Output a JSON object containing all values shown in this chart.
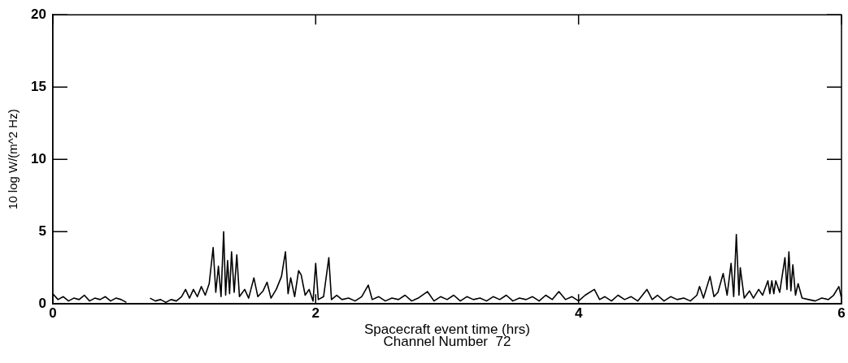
{
  "chart_data": {
    "type": "line",
    "xlabel": "Spacecraft event time (hrs)",
    "ylabel": "10 log W/(m^2 Hz)",
    "annotations": [
      "Channel Number  72"
    ],
    "xlim": [
      0,
      6
    ],
    "xticks": [
      0,
      2,
      4,
      6
    ],
    "ylim": [
      0,
      20
    ],
    "yticks": [
      0,
      5,
      10,
      15,
      20
    ],
    "grid": false,
    "legend": false,
    "marker": "none",
    "line_style": "solid",
    "series": [
      {
        "color": "#000000",
        "x": [
          0,
          0.04,
          0.08,
          0.12,
          0.16,
          0.2,
          0.24,
          0.28,
          0.32,
          0.36,
          0.4,
          0.44,
          0.48,
          0.52,
          0.56,
          0.62,
          0.74,
          0.78,
          0.82,
          0.86,
          0.9,
          0.94,
          0.98,
          1.01,
          1.04,
          1.07,
          1.1,
          1.13,
          1.16,
          1.19,
          1.22,
          1.24,
          1.26,
          1.28,
          1.3,
          1.315,
          1.33,
          1.345,
          1.36,
          1.38,
          1.4,
          1.42,
          1.46,
          1.49,
          1.53,
          1.56,
          1.6,
          1.63,
          1.66,
          1.7,
          1.74,
          1.77,
          1.79,
          1.81,
          1.84,
          1.87,
          1.89,
          1.92,
          1.95,
          1.98,
          2.0,
          2.02,
          2.06,
          2.1,
          2.12,
          2.16,
          2.2,
          2.25,
          2.3,
          2.35,
          2.4,
          2.43,
          2.48,
          2.53,
          2.58,
          2.63,
          2.68,
          2.73,
          2.78,
          2.85,
          2.9,
          2.95,
          3.0,
          3.05,
          3.1,
          3.15,
          3.2,
          3.25,
          3.3,
          3.35,
          3.4,
          3.45,
          3.5,
          3.55,
          3.6,
          3.65,
          3.7,
          3.75,
          3.8,
          3.85,
          3.9,
          3.95,
          4.0,
          4.05,
          4.12,
          4.16,
          4.2,
          4.25,
          4.3,
          4.35,
          4.4,
          4.45,
          4.52,
          4.56,
          4.6,
          4.65,
          4.7,
          4.75,
          4.8,
          4.85,
          4.9,
          4.92,
          4.95,
          5.0,
          5.03,
          5.06,
          5.1,
          5.13,
          5.16,
          5.18,
          5.2,
          5.22,
          5.23,
          5.26,
          5.3,
          5.33,
          5.37,
          5.4,
          5.44,
          5.455,
          5.47,
          5.485,
          5.5,
          5.53,
          5.57,
          5.585,
          5.6,
          5.615,
          5.63,
          5.65,
          5.67,
          5.7,
          5.75,
          5.8,
          5.85,
          5.9,
          5.94,
          5.98,
          6.0
        ],
        "values": [
          0.7,
          0.3,
          0.5,
          0.2,
          0.4,
          0.3,
          0.6,
          0.2,
          0.4,
          0.3,
          0.5,
          0.2,
          0.4,
          0.3,
          0.1,
          null,
          0.4,
          0.2,
          0.3,
          0.1,
          0.3,
          0.2,
          0.5,
          1.0,
          0.4,
          1.0,
          0.5,
          1.2,
          0.6,
          1.4,
          3.9,
          0.8,
          2.6,
          0.5,
          5.0,
          0.6,
          3.0,
          0.7,
          3.6,
          0.8,
          3.4,
          0.5,
          1.0,
          0.4,
          1.8,
          0.5,
          0.9,
          1.5,
          0.4,
          1.0,
          1.9,
          3.6,
          0.7,
          1.8,
          0.5,
          2.3,
          2.0,
          0.6,
          1.0,
          0.2,
          2.8,
          0.3,
          0.5,
          3.2,
          0.3,
          0.6,
          0.3,
          0.4,
          0.2,
          0.5,
          1.3,
          0.3,
          0.5,
          0.2,
          0.4,
          0.3,
          0.6,
          0.2,
          0.4,
          0.85,
          0.2,
          0.5,
          0.3,
          0.6,
          0.2,
          0.5,
          0.3,
          0.4,
          0.2,
          0.5,
          0.3,
          0.6,
          0.2,
          0.4,
          0.3,
          0.5,
          0.2,
          0.6,
          0.3,
          0.85,
          0.3,
          0.5,
          0.2,
          0.6,
          1.0,
          0.3,
          0.5,
          0.2,
          0.6,
          0.3,
          0.5,
          0.2,
          1.0,
          0.3,
          0.6,
          0.2,
          0.5,
          0.3,
          0.4,
          0.2,
          0.6,
          1.2,
          0.4,
          1.9,
          0.5,
          0.8,
          2.1,
          0.6,
          2.8,
          0.5,
          4.8,
          0.6,
          2.5,
          0.4,
          0.9,
          0.4,
          1.0,
          0.6,
          1.6,
          0.7,
          1.6,
          0.7,
          1.6,
          0.8,
          3.2,
          1.0,
          3.6,
          0.9,
          2.7,
          0.6,
          1.4,
          0.4,
          0.3,
          0.2,
          0.4,
          0.3,
          0.6,
          1.2,
          0.4
        ]
      }
    ]
  }
}
